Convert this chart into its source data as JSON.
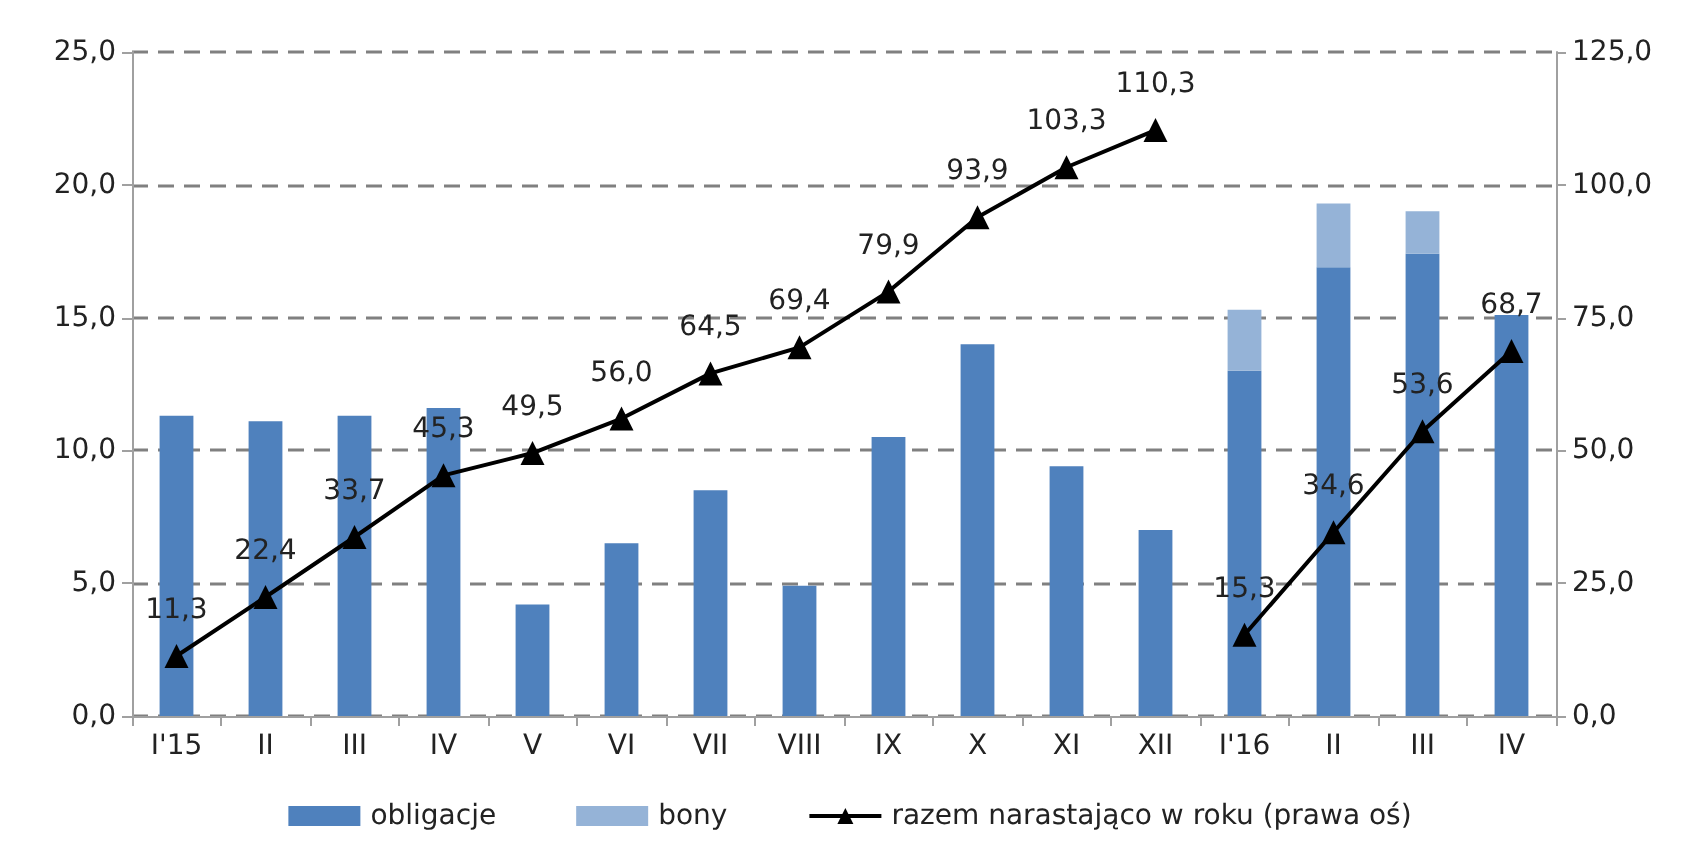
{
  "chart_data": {
    "type": "bar",
    "stacked": true,
    "categories": [
      "I'15",
      "II",
      "III",
      "IV",
      "V",
      "VI",
      "VII",
      "VIII",
      "IX",
      "X",
      "XI",
      "XII",
      "I'16",
      "II",
      "III",
      "IV"
    ],
    "series": [
      {
        "name": "obligacje",
        "color": "#4f81bd",
        "values": [
          11.3,
          11.1,
          11.3,
          11.6,
          4.2,
          6.5,
          8.5,
          4.9,
          10.5,
          14.0,
          9.4,
          7.0,
          13.0,
          16.9,
          17.4,
          15.1
        ]
      },
      {
        "name": "bony",
        "color": "#95b3d7",
        "values": [
          null,
          null,
          null,
          null,
          null,
          null,
          null,
          null,
          null,
          null,
          null,
          null,
          2.3,
          2.4,
          1.6,
          null
        ]
      },
      {
        "name": "razem narastająco w roku (prawa oś)",
        "type": "line",
        "axis": "y2",
        "color": "#000000",
        "marker": "triangle",
        "values": [
          11.3,
          22.4,
          33.7,
          45.3,
          49.5,
          56.0,
          64.5,
          69.4,
          79.9,
          93.9,
          103.3,
          110.3,
          null,
          null,
          null,
          null
        ],
        "value_labels": [
          "11,3",
          "22,4",
          "33,7",
          "45,3",
          "49,5",
          "56,0",
          "64,5",
          "69,4",
          "79,9",
          "93,9",
          "103,3",
          "110,3",
          null,
          null,
          null,
          null
        ]
      },
      {
        "type": "line",
        "axis": "y2",
        "color": "#000000",
        "marker": "triangle",
        "values": [
          null,
          null,
          null,
          null,
          null,
          null,
          null,
          null,
          null,
          null,
          null,
          null,
          15.3,
          34.6,
          53.6,
          68.7
        ],
        "value_labels": [
          null,
          null,
          null,
          null,
          null,
          null,
          null,
          null,
          null,
          null,
          null,
          null,
          "15,3",
          "34,6",
          "53,6",
          "68,7"
        ]
      }
    ],
    "ylim": [
      0,
      25
    ],
    "yticks": [
      {
        "value": 0,
        "label": "0,0"
      },
      {
        "value": 5,
        "label": "5,0"
      },
      {
        "value": 10,
        "label": "10,0"
      },
      {
        "value": 15,
        "label": "15,0"
      },
      {
        "value": 20,
        "label": "20,0"
      },
      {
        "value": 25,
        "label": "25,0"
      }
    ],
    "y2lim": [
      0,
      125
    ],
    "y2ticks": [
      {
        "value": 0,
        "label": "0,0"
      },
      {
        "value": 25,
        "label": "25,0"
      },
      {
        "value": 50,
        "label": "50,0"
      },
      {
        "value": 75,
        "label": "75,0"
      },
      {
        "value": 100,
        "label": "100,0"
      },
      {
        "value": 125,
        "label": "125,0"
      }
    ],
    "grid": "y",
    "legend": "bottom"
  }
}
